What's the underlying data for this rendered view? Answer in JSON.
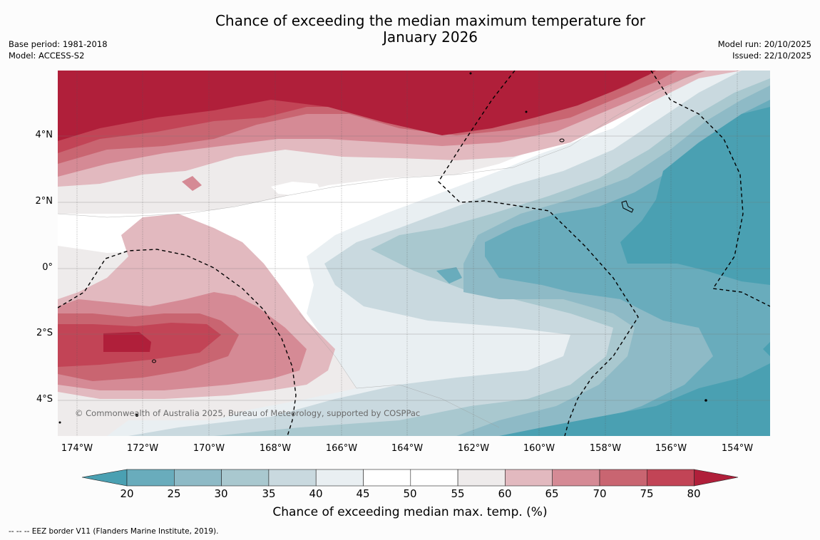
{
  "header": {
    "title_line1": "Chance of exceeding the median maximum temperature for",
    "title_line2": "January 2026",
    "base_period": "Base period: 1981-2018",
    "model": "Model: ACCESS-S2",
    "model_run": "Model run: 20/10/2025",
    "issued": "Issued: 22/10/2025"
  },
  "map": {
    "x_ticks": [
      "174°W",
      "172°W",
      "170°W",
      "168°W",
      "166°W",
      "164°W",
      "162°W",
      "160°W",
      "158°W",
      "156°W",
      "154°W"
    ],
    "y_ticks": [
      "4°N",
      "2°N",
      "0°",
      "2°S",
      "4°S"
    ],
    "copyright": "© Commonwealth of Australia 2025, Bureau of Meteorology, supported by COSPPac"
  },
  "colorbar": {
    "ticks": [
      "20",
      "25",
      "30",
      "35",
      "40",
      "45",
      "50",
      "55",
      "60",
      "65",
      "70",
      "75",
      "80"
    ],
    "label": "Chance of exceeding median max. temp. (%)",
    "colors": {
      "lt20": "#4aa0b2",
      "20-25": "#69acbc",
      "25-30": "#8ebac6",
      "30-35": "#a9c8cf",
      "35-40": "#c9d9df",
      "40-45": "#e9eff2",
      "45-50": "#ffffff",
      "50-55": "#ffffff",
      "55-60": "#eeebeb",
      "60-65": "#e2b9bf",
      "65-70": "#d58a95",
      "70-75": "#c96571",
      "75-80": "#c24456",
      "gt80": "#b01f3a"
    }
  },
  "footer": {
    "legend": "--  --  -- EEZ border V11 (Flanders Marine Institute, 2019)."
  }
}
